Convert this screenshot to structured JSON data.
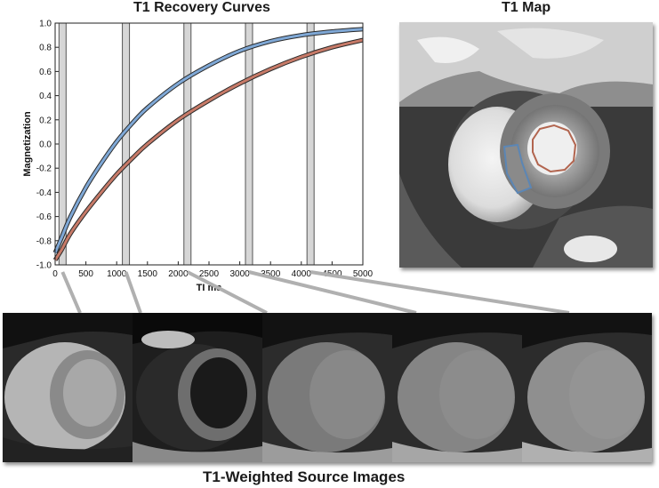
{
  "chart_title": "T1 Recovery Curves",
  "map_title": "T1 Map",
  "source_title": "T1-Weighted Source Images",
  "chart_data": {
    "type": "line",
    "xlabel": "TI ms",
    "ylabel": "Magnetization",
    "xlim": [
      0,
      5000
    ],
    "ylim": [
      -1.0,
      1.0
    ],
    "xticks": [
      0,
      500,
      1000,
      1500,
      2000,
      2500,
      3000,
      3500,
      4000,
      4500,
      5000
    ],
    "yticks": [
      -1.0,
      -0.8,
      -0.6,
      -0.4,
      -0.2,
      0.0,
      0.2,
      0.4,
      0.6,
      0.8,
      1.0
    ],
    "x_tick_labels": [
      "0",
      "500",
      "1000",
      "1500",
      "2000",
      "2500",
      "3000",
      "3500",
      "4000",
      "4500",
      "5000"
    ],
    "y_tick_labels": [
      "-1.0",
      "-0.8",
      "-0.6",
      "-0.4",
      "-0.2",
      "0.0",
      "0.2",
      "0.4",
      "0.6",
      "0.8",
      "1.0"
    ],
    "grid": false,
    "series": [
      {
        "color": "#7fa8d6",
        "x": [
          0,
          100,
          250,
          500,
          750,
          1000,
          1250,
          1500,
          2000,
          2500,
          3000,
          3500,
          4000,
          4500,
          5000
        ],
        "y": [
          -0.9,
          -0.78,
          -0.6,
          -0.36,
          -0.16,
          0.02,
          0.17,
          0.3,
          0.5,
          0.65,
          0.77,
          0.85,
          0.9,
          0.93,
          0.95
        ]
      },
      {
        "color": "#c77a68",
        "x": [
          0,
          100,
          250,
          500,
          750,
          1000,
          1250,
          1500,
          2000,
          2500,
          3000,
          3500,
          4000,
          4500,
          5000
        ],
        "y": [
          -0.96,
          -0.88,
          -0.74,
          -0.56,
          -0.4,
          -0.25,
          -0.12,
          0.0,
          0.2,
          0.36,
          0.5,
          0.62,
          0.72,
          0.8,
          0.86
        ]
      }
    ],
    "highlight_TI": [
      120,
      1150,
      2150,
      3150,
      4150
    ]
  },
  "colors": {
    "blue_curve": "#7fa8d6",
    "red_curve": "#c77a68",
    "ti_band": "#d6d6d6",
    "connector": "#b0b0b0"
  }
}
